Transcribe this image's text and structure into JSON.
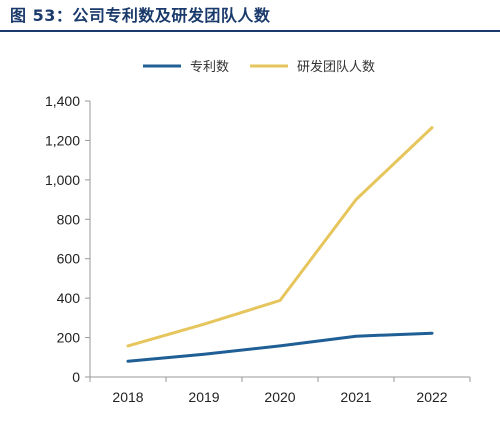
{
  "header": {
    "title": "图 53：公司专利数及研发团队人数"
  },
  "chart_data": {
    "type": "line",
    "x": [
      "2018",
      "2019",
      "2020",
      "2021",
      "2022"
    ],
    "series": [
      {
        "name": "专利数",
        "color": "#1f5f95",
        "values": [
          80,
          115,
          158,
          207,
          222
        ]
      },
      {
        "name": "研发团队人数",
        "color": "#e6c65c",
        "values": [
          158,
          268,
          388,
          900,
          1265
        ]
      }
    ],
    "ylim": [
      0,
      1400
    ],
    "yticks": [
      0,
      200,
      400,
      600,
      800,
      1000,
      1200,
      1400
    ],
    "ytick_labels": [
      "0",
      "200",
      "400",
      "600",
      "800",
      "1,000",
      "1,200",
      "1,400"
    ],
    "grid": false,
    "legend": "top-center",
    "title": "",
    "xlabel": "",
    "ylabel": ""
  }
}
